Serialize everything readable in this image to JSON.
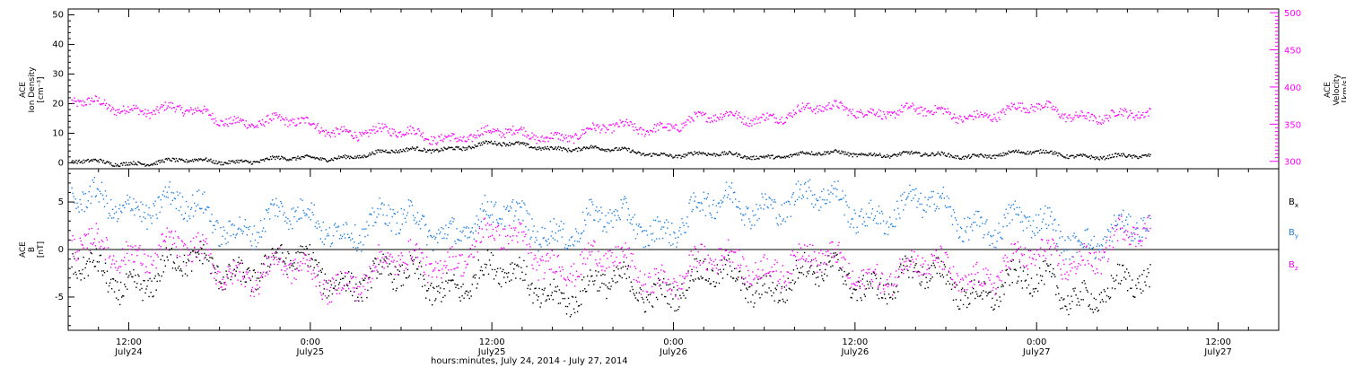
{
  "chart_data": [
    {
      "type": "scatter",
      "panel": "top",
      "ylabel_left": [
        "ACE",
        "Ion Density",
        "[cm⁻³]"
      ],
      "ylabel_right": [
        "ACE",
        "Velocity",
        "[km/s]"
      ],
      "ylim_left": [
        -2,
        52
      ],
      "yticks_left": [
        "0",
        "10",
        "20",
        "30",
        "40",
        "50"
      ],
      "ylim_right": [
        290,
        505
      ],
      "yticks_right": [
        "300",
        "350",
        "400",
        "450",
        "500"
      ],
      "series": [
        {
          "color": "#000000",
          "axis": "left",
          "x_hours": [
            0,
            6,
            12,
            18,
            24,
            30,
            36,
            42,
            48,
            54,
            60,
            66,
            72,
            78
          ],
          "values": [
            0.5,
            0.4,
            0.3,
            0.8,
            1.5,
            4.0,
            6.5,
            5.0,
            3.0,
            2.5,
            3.5,
            2.5,
            3.5,
            2.0
          ]
        },
        {
          "color": "#ff00ff",
          "axis": "right",
          "x_hours": [
            0,
            6,
            12,
            18,
            24,
            30,
            36,
            42,
            48,
            54,
            60,
            66,
            72,
            78
          ],
          "values": [
            380,
            378,
            375,
            360,
            348,
            336,
            336,
            338,
            352,
            363,
            372,
            363,
            370,
            360
          ]
        }
      ]
    },
    {
      "type": "scatter",
      "panel": "bottom",
      "ylabel": [
        "ACE",
        "B",
        "[nT]"
      ],
      "ylim": [
        -8.5,
        8.5
      ],
      "yticks": [
        "-5",
        "0",
        "5"
      ],
      "legend": [
        {
          "label": "Bx",
          "color": "#000000"
        },
        {
          "label": "By",
          "color": "#1f7fe0"
        },
        {
          "label": "Bz",
          "color": "#ff00ff"
        }
      ],
      "series": [
        {
          "name": "Bx",
          "color": "#000000",
          "x_hours": [
            0,
            6,
            12,
            18,
            24,
            30,
            36,
            42,
            48,
            54,
            60,
            66,
            72,
            78
          ],
          "values": [
            -2.5,
            -2.2,
            -3.0,
            -1.5,
            -2.0,
            -3.5,
            -2.8,
            -4.5,
            -3.5,
            -3.2,
            -2.8,
            -3.5,
            -4.0,
            -4.2
          ]
        },
        {
          "name": "By",
          "color": "#1f7fe0",
          "x_hours": [
            0,
            6,
            12,
            18,
            24,
            30,
            36,
            42,
            48,
            54,
            60,
            66,
            72,
            78
          ],
          "values": [
            -1.0,
            3.5,
            5.5,
            3.0,
            3.0,
            2.5,
            3.0,
            2.5,
            3.0,
            5.5,
            4.5,
            4.0,
            2.0,
            1.5
          ]
        },
        {
          "name": "Bz",
          "color": "#ff00ff",
          "x_hours": [
            0,
            6,
            12,
            18,
            24,
            30,
            36,
            42,
            48,
            54,
            60,
            66,
            72,
            78
          ],
          "values": [
            -3.5,
            -1.0,
            0.5,
            -1.5,
            -3.0,
            -2.0,
            1.0,
            -1.5,
            -2.5,
            -1.0,
            -2.0,
            -2.5,
            -1.5,
            1.0
          ]
        }
      ]
    }
  ],
  "x_axis": {
    "xlabel": "hours:minutes, July 24, 2014 - July 27, 2014",
    "ticks": [
      {
        "time": "12:00",
        "date": "July24",
        "hours": 12
      },
      {
        "time": "0:00",
        "date": "July25",
        "hours": 24
      },
      {
        "time": "12:00",
        "date": "July25",
        "hours": 36
      },
      {
        "time": "0:00",
        "date": "July26",
        "hours": 48
      },
      {
        "time": "12:00",
        "date": "July26",
        "hours": 60
      },
      {
        "time": "0:00",
        "date": "July27",
        "hours": 72
      },
      {
        "time": "12:00",
        "date": "July27",
        "hours": 84
      }
    ]
  }
}
